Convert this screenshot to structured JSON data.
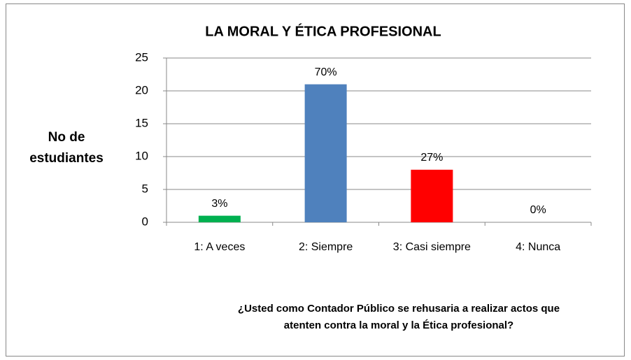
{
  "chart_data": {
    "type": "bar",
    "title": "LA MORAL Y ÉTICA PROFESIONAL",
    "categories": [
      "1: A veces",
      "2: Siempre",
      "3: Casi siempre",
      "4:  Nunca"
    ],
    "values": [
      1,
      21,
      8,
      0
    ],
    "percent_labels": [
      "3%",
      "70%",
      "27%",
      "0%"
    ],
    "colors": [
      "#00b050",
      "#4f81bd",
      "#ff0000",
      "#8064a2"
    ],
    "ylabel": [
      "No de",
      "estudiantes"
    ],
    "xlabel": [
      "¿Usted como Contador Público se rehusaria a realizar actos que",
      "atenten contra la moral y la Ética profesional?"
    ],
    "ylim": [
      0,
      25
    ],
    "yticks": [
      0,
      5,
      10,
      15,
      20,
      25
    ],
    "grid": true
  }
}
